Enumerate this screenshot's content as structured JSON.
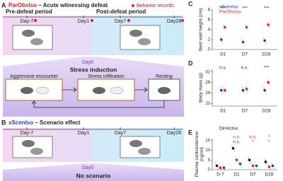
{
  "panel_a": {
    "letter": "A",
    "title_name": "ParObsIso",
    "title_rest": " – Acute witnessing defeat",
    "legend": "Behavior records",
    "pre": "Pre-defeat period",
    "post": "Post-defeat period",
    "days": [
      "Day-7",
      "Day1",
      "Day7",
      "Day28"
    ],
    "day0": "Day0",
    "stress": "Stress induction",
    "steps": [
      "Aggressive encounter",
      "Stress infiltration",
      "Resting"
    ]
  },
  "panel_b": {
    "letter": "B",
    "title_name": "xScenIso",
    "title_rest": " – Scenario effect",
    "days": [
      "Day-7",
      "Day1",
      "Day7",
      "Day28"
    ],
    "day0": "Day0",
    "note": "No scenario"
  },
  "chart_data": [
    {
      "type": "dot",
      "panel": "C",
      "ylabel": [
        "Nest wall height (cm)"
      ],
      "categories": [
        "D1",
        "D7",
        "D28"
      ],
      "series": [
        {
          "name": "xScenIso",
          "color": "#2233cc",
          "values": [
            2,
            1.5,
            1.8
          ]
        },
        {
          "name": "ParObsIso",
          "color": "#dd2222",
          "values": [
            4.5,
            4.5,
            5
          ]
        }
      ],
      "ylim": [
        0,
        8
      ],
      "yticks": [
        0,
        2,
        4,
        6,
        8
      ],
      "annotation_rows": [
        {
          "color": "#222222",
          "labels": [
            "***",
            "***",
            "***"
          ]
        }
      ]
    },
    {
      "type": "dot",
      "panel": "D",
      "ylabel": [
        "Body mass (g)"
      ],
      "categories": [
        "D1",
        "D7",
        "D28"
      ],
      "series": [
        {
          "color": "#2233cc",
          "values": [
            25,
            25,
            25
          ]
        },
        {
          "color": "#dd2222",
          "values": [
            25,
            25.5,
            28
          ]
        }
      ],
      "ylim": [
        19,
        33
      ],
      "yticks": [
        20,
        24,
        28,
        32
      ],
      "annotation_rows": [
        {
          "color": "#222222",
          "labels": [
            "n.s.",
            "n.s.",
            "***"
          ]
        }
      ]
    },
    {
      "type": "dot",
      "panel": "E",
      "ylabel": [
        "Plasma corticosterone",
        "(ng/ml)"
      ],
      "categories": [
        "D-7",
        "D1",
        "D7",
        "D28"
      ],
      "series": [
        {
          "name": "DirAtcIso",
          "color": "#111111",
          "values": [
            2,
            11,
            5,
            4
          ]
        },
        {
          "color": "#dd2222",
          "values": [
            1,
            5,
            2,
            1.5
          ]
        },
        {
          "color": "#2233cc",
          "values": [
            1,
            3,
            2,
            2
          ]
        }
      ],
      "ylim": [
        0,
        16
      ],
      "yticks": [
        0,
        5,
        10,
        15
      ],
      "annotation_rows": [
        {
          "color": "#dd2222",
          "labels": [
            null,
            "n.s.",
            "n.s.",
            "*"
          ]
        },
        {
          "color": "#2233cc",
          "labels": [
            null,
            "n.s.",
            "*",
            "*"
          ]
        }
      ]
    }
  ]
}
